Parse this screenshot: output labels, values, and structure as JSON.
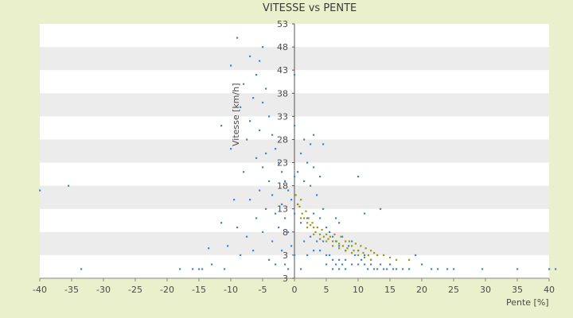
{
  "chart_data": {
    "type": "scatter",
    "title": "VITESSE vs PENTE",
    "xlabel": "Pente [%]",
    "ylabel": "Vitesse [km/h]",
    "xlim": [
      -40,
      40
    ],
    "ylim": [
      3,
      58
    ],
    "x_ticks": [
      "-40",
      "-35",
      "-30",
      "-25",
      "-20",
      "-15",
      "-10",
      "-5",
      "0",
      "5",
      "10",
      "15",
      "20",
      "25",
      "30",
      "35",
      "40"
    ],
    "y_ticks": [
      "3",
      "3",
      "8",
      "13",
      "18",
      "23",
      "28",
      "33",
      "38",
      "43",
      "48",
      "53"
    ],
    "grid": "horizontal bands",
    "legend": "none",
    "colors": {
      "series_a": "#3b86cf",
      "series_b": "#9b9a10",
      "band": "#ececec",
      "plot": "#ffffff",
      "background": "#eaf0cc"
    },
    "series": [
      {
        "color": "#3b86cf",
        "x": [
          -40,
          -35.5,
          -33.5,
          -18,
          -16,
          -15,
          -14.5,
          -13.5,
          -13,
          -11.5,
          -11.5,
          -11,
          -10.5,
          -10,
          -10,
          -9.5,
          -9,
          -9,
          -8.5,
          -8.5,
          -8,
          -8,
          -7.5,
          -7.5,
          -7,
          -7,
          -7,
          -6.5,
          -6.5,
          -6,
          -6,
          -6,
          -5.5,
          -5.5,
          -5.5,
          -5,
          -5,
          -5,
          -5,
          -4.5,
          -4.5,
          -4.5,
          -4,
          -4,
          -4,
          -3.5,
          -3.5,
          -3.5,
          -3,
          -3,
          -3,
          -2.5,
          -2.5,
          -2,
          -2,
          -2,
          -1.5,
          -1.5,
          -1.5,
          -1,
          -1,
          -1,
          -0.5,
          -0.5,
          0,
          0,
          0,
          0,
          0,
          0.5,
          0.5,
          1,
          1,
          1,
          1.5,
          1.5,
          2,
          2,
          2,
          2.5,
          2.5,
          3,
          3,
          3,
          3.5,
          3.5,
          4,
          4,
          4,
          4.5,
          4.5,
          5,
          5,
          5,
          5.5,
          5.5,
          6,
          6,
          6,
          6.5,
          6.5,
          7,
          7,
          7,
          7.5,
          7.5,
          8,
          8,
          8,
          8.5,
          9,
          9,
          9.5,
          10,
          10,
          10.5,
          11,
          11,
          11.5,
          12,
          12,
          12.5,
          13,
          13.5,
          14,
          14.5,
          15,
          15.5,
          16,
          17,
          18,
          19,
          20,
          21.5,
          22.5,
          24,
          25,
          29.5,
          35,
          40,
          41,
          1.5,
          3,
          2.5,
          4.5,
          10,
          13.5,
          11,
          6.5,
          7
        ],
        "y": [
          22,
          23,
          5,
          5,
          5,
          5,
          5,
          9.5,
          6,
          15,
          36,
          5,
          10,
          49,
          31,
          20,
          55,
          14,
          40,
          8,
          45,
          26,
          33,
          12,
          51,
          37,
          20,
          42,
          9,
          47,
          29,
          16,
          50,
          35,
          22,
          53,
          41,
          27,
          13,
          44,
          30,
          18,
          38,
          24,
          7,
          34,
          21,
          11,
          31,
          17,
          6,
          28,
          14,
          26,
          19,
          9,
          24,
          16,
          6,
          22,
          13,
          5,
          20,
          10,
          36,
          47,
          25,
          17,
          8,
          26,
          19,
          30,
          15,
          5,
          24,
          11,
          28,
          16,
          8,
          23,
          12,
          27,
          17,
          9,
          21,
          11,
          25,
          16,
          9,
          18,
          11,
          14,
          8,
          6,
          13,
          8,
          12,
          7,
          5,
          11,
          6,
          10,
          7,
          5,
          12,
          6,
          9,
          7,
          5,
          10,
          11,
          6,
          8,
          9,
          6,
          7,
          6,
          8,
          5,
          6,
          7,
          5,
          5,
          6,
          5,
          5,
          6,
          5,
          5,
          5,
          5,
          8,
          6,
          5,
          5,
          5,
          5,
          5,
          5,
          5,
          5,
          33,
          34,
          32,
          32,
          25,
          18,
          17,
          16,
          15
        ]
      },
      {
        "color": "#9b9a10",
        "x": [
          0.2,
          0.5,
          0.8,
          1,
          1.2,
          1.5,
          1.8,
          2,
          2.2,
          2.5,
          2.8,
          3,
          3.3,
          3.6,
          4,
          4.3,
          4.6,
          5,
          5.3,
          5.6,
          6,
          6.3,
          6.6,
          7,
          7.3,
          7.6,
          8,
          8.3,
          8.6,
          9,
          9.3,
          9.6,
          10,
          10.4,
          10.8,
          11.2,
          11.6,
          12,
          12.5,
          13,
          14,
          15,
          16,
          18,
          1,
          2,
          3,
          4,
          5,
          6,
          7,
          8,
          9,
          10,
          11,
          12
        ],
        "y": [
          21,
          19,
          18.5,
          20,
          17,
          16,
          17.5,
          15,
          16,
          14.5,
          15,
          14,
          13,
          14,
          12.5,
          13.5,
          12,
          12.5,
          11.5,
          12,
          11,
          12.5,
          11,
          10.5,
          12,
          10,
          11,
          9.5,
          11,
          10,
          9,
          10.5,
          9,
          10,
          8.5,
          9.5,
          8,
          9,
          8.5,
          8,
          8,
          7.5,
          7,
          7,
          16,
          14,
          12.5,
          11.5,
          11,
          10,
          9.5,
          9,
          8.5,
          8,
          7.5,
          7
        ]
      }
    ]
  }
}
